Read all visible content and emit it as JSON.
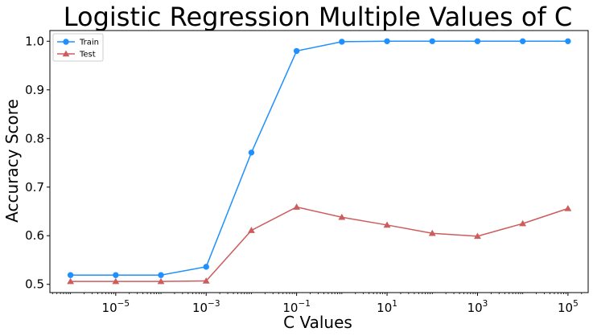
{
  "chart_data": {
    "type": "line",
    "title": "Logistic Regression Multiple Values of C",
    "xlabel": "C Values",
    "ylabel": "Accuracy Score",
    "x_scale": "log",
    "x_ticks": [
      1e-05,
      0.001,
      0.1,
      10.0,
      1000.0,
      100000.0
    ],
    "x_tick_labels": [
      {
        "base": "10",
        "exp": "−5"
      },
      {
        "base": "10",
        "exp": "−3"
      },
      {
        "base": "10",
        "exp": "−1"
      },
      {
        "base": "10",
        "exp": "1"
      },
      {
        "base": "10",
        "exp": "3"
      },
      {
        "base": "10",
        "exp": "5"
      }
    ],
    "y_ticks": [
      0.5,
      0.6,
      0.7,
      0.8,
      0.9,
      1.0
    ],
    "y_tick_labels": [
      "0.5",
      "0.6",
      "0.7",
      "0.8",
      "0.9",
      "1.0"
    ],
    "ylim": [
      0.483,
      1.022
    ],
    "xlim": [
      3.5e-07,
      280000.0
    ],
    "legend_position": "top-left",
    "x": [
      1e-06,
      1e-05,
      0.0001,
      0.001,
      0.01,
      0.1,
      1.0,
      10.0,
      100.0,
      1000.0,
      10000.0,
      100000.0
    ],
    "series": [
      {
        "name": "Train",
        "color": "#1e90ff",
        "marker": "circle",
        "values": [
          0.519,
          0.519,
          0.519,
          0.536,
          0.771,
          0.98,
          0.999,
          1.0,
          1.0,
          1.0,
          1.0,
          1.0
        ]
      },
      {
        "name": "Test",
        "color": "#cd5c5c",
        "marker": "triangle",
        "values": [
          0.506,
          0.506,
          0.506,
          0.507,
          0.611,
          0.659,
          0.638,
          0.622,
          0.605,
          0.599,
          0.625,
          0.656
        ]
      }
    ]
  }
}
